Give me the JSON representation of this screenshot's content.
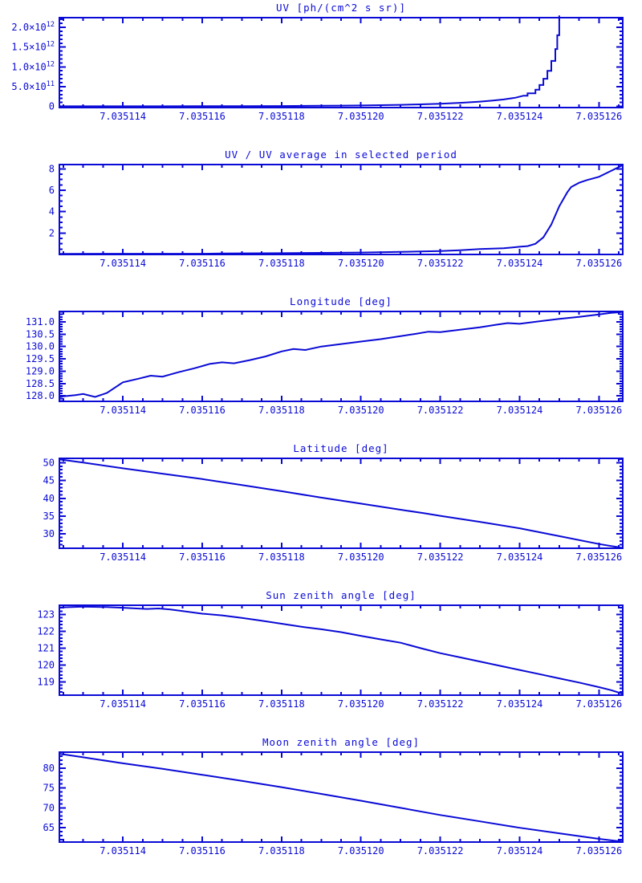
{
  "page": {
    "background": "#ffffff",
    "accent": "#0a0ad6"
  },
  "chart_data": {
    "x_axis": {
      "lim": [
        7.0351124,
        7.0351266
      ],
      "tick_values": [
        7.035114,
        7.035116,
        7.035118,
        7.03512,
        7.035122,
        7.035124,
        7.035126
      ],
      "tick_labels": [
        "7.035114",
        "7.035116",
        "7.035118",
        "7.035120",
        "7.035122",
        "7.035124",
        "7.035126"
      ],
      "minor_step": 5e-07
    },
    "plots": [
      {
        "id": "uv",
        "type": "line",
        "title": "UV [ph/(cm^2 s sr)]",
        "ylim": [
          -30000000000.0,
          2245000000000.0
        ],
        "y_major_values": [
          0,
          500000000000.0,
          1000000000000.0,
          1500000000000.0,
          2000000000000.0
        ],
        "ytick_labels": [
          [
            "0",
            ""
          ],
          [
            "5.0×10",
            "11"
          ],
          [
            "1.0×10",
            "12"
          ],
          [
            "1.5×10",
            "12"
          ],
          [
            "2.0×10",
            "12"
          ]
        ],
        "y_minor_step": 100000000000.0,
        "points": [
          [
            7.0351124,
            2000000000.0
          ],
          [
            7.035115,
            3000000000.0
          ],
          [
            7.035116,
            4000000000.0
          ],
          [
            7.0351165,
            6000000000.0
          ],
          [
            7.035117,
            6000000000.0
          ],
          [
            7.035118,
            9000000000.0
          ],
          [
            7.035119,
            14000000000.0
          ],
          [
            7.0351195,
            18000000000.0
          ],
          [
            7.03512,
            23000000000.0
          ],
          [
            7.0351205,
            30000000000.0
          ],
          [
            7.035121,
            40000000000.0
          ],
          [
            7.0351215,
            52000000000.0
          ],
          [
            7.035122,
            68000000000.0
          ],
          [
            7.0351225,
            90000000000.0
          ],
          [
            7.035123,
            120000000000.0
          ],
          [
            7.0351233,
            145000000000.0
          ],
          [
            7.0351236,
            175000000000.0
          ],
          [
            7.0351239,
            220000000000.0
          ],
          [
            7.0351241,
            270000000000.0
          ],
          [
            7.0351242,
            270000000000.0
          ],
          [
            7.0351242,
            330000000000.0
          ],
          [
            7.0351244,
            330000000000.0
          ],
          [
            7.0351244,
            420000000000.0
          ],
          [
            7.0351245,
            420000000000.0
          ],
          [
            7.0351245,
            540000000000.0
          ],
          [
            7.0351246,
            540000000000.0
          ],
          [
            7.0351246,
            700000000000.0
          ],
          [
            7.0351247,
            700000000000.0
          ],
          [
            7.0351247,
            900000000000.0
          ],
          [
            7.0351248,
            900000000000.0
          ],
          [
            7.0351248,
            1150000000000.0
          ],
          [
            7.0351249,
            1150000000000.0
          ],
          [
            7.0351249,
            1450000000000.0
          ],
          [
            7.03512495,
            1450000000000.0
          ],
          [
            7.03512495,
            1800000000000.0
          ],
          [
            7.035125,
            1800000000000.0
          ],
          [
            7.035125,
            2300000000000.0
          ]
        ]
      },
      {
        "id": "uv-ratio",
        "type": "line",
        "title": "UV / UV average in selected period",
        "ylim": [
          0,
          8.4
        ],
        "y_major_values": [
          2,
          4,
          6,
          8
        ],
        "ytick_labels": [
          [
            "2",
            ""
          ],
          [
            "4",
            ""
          ],
          [
            "6",
            ""
          ],
          [
            "8",
            ""
          ]
        ],
        "y_minor_step": 0.5,
        "points": [
          [
            7.0351124,
            0.06
          ],
          [
            7.035116,
            0.07
          ],
          [
            7.0351165,
            0.1
          ],
          [
            7.035118,
            0.12
          ],
          [
            7.035119,
            0.15
          ],
          [
            7.03512,
            0.18
          ],
          [
            7.035121,
            0.24
          ],
          [
            7.0351215,
            0.28
          ],
          [
            7.035122,
            0.32
          ],
          [
            7.0351225,
            0.4
          ],
          [
            7.035123,
            0.5
          ],
          [
            7.0351233,
            0.55
          ],
          [
            7.0351236,
            0.58
          ],
          [
            7.035124,
            0.72
          ],
          [
            7.0351242,
            0.78
          ],
          [
            7.0351244,
            1.0
          ],
          [
            7.0351246,
            1.6
          ],
          [
            7.0351248,
            2.8
          ],
          [
            7.035125,
            4.5
          ],
          [
            7.0351252,
            5.8
          ],
          [
            7.0351253,
            6.3
          ],
          [
            7.0351255,
            6.7
          ],
          [
            7.0351257,
            6.95
          ],
          [
            7.035126,
            7.25
          ],
          [
            7.0351263,
            7.8
          ],
          [
            7.0351266,
            8.35
          ]
        ]
      },
      {
        "id": "longitude",
        "type": "line",
        "title": "Longitude [deg]",
        "ylim": [
          127.78,
          131.42
        ],
        "y_major_values": [
          128.0,
          128.5,
          129.0,
          129.5,
          130.0,
          130.5,
          131.0
        ],
        "ytick_labels": [
          [
            "128.0",
            ""
          ],
          [
            "128.5",
            ""
          ],
          [
            "129.0",
            ""
          ],
          [
            "129.5",
            ""
          ],
          [
            "130.0",
            ""
          ],
          [
            "130.5",
            ""
          ],
          [
            "131.0",
            ""
          ]
        ],
        "y_minor_step": 0.1,
        "points": [
          [
            7.0351124,
            127.97
          ],
          [
            7.0351128,
            128.03
          ],
          [
            7.035113,
            128.08
          ],
          [
            7.0351133,
            127.96
          ],
          [
            7.0351136,
            128.12
          ],
          [
            7.035114,
            128.55
          ],
          [
            7.0351144,
            128.7
          ],
          [
            7.0351147,
            128.82
          ],
          [
            7.035115,
            128.78
          ],
          [
            7.0351154,
            128.96
          ],
          [
            7.0351158,
            129.12
          ],
          [
            7.0351162,
            129.3
          ],
          [
            7.0351165,
            129.36
          ],
          [
            7.0351168,
            129.32
          ],
          [
            7.0351172,
            129.45
          ],
          [
            7.0351176,
            129.6
          ],
          [
            7.035118,
            129.8
          ],
          [
            7.0351183,
            129.9
          ],
          [
            7.0351186,
            129.86
          ],
          [
            7.035119,
            130.0
          ],
          [
            7.0351195,
            130.1
          ],
          [
            7.03512,
            130.2
          ],
          [
            7.0351205,
            130.3
          ],
          [
            7.035121,
            130.42
          ],
          [
            7.0351214,
            130.52
          ],
          [
            7.0351217,
            130.6
          ],
          [
            7.035122,
            130.58
          ],
          [
            7.0351225,
            130.68
          ],
          [
            7.035123,
            130.78
          ],
          [
            7.0351234,
            130.88
          ],
          [
            7.0351237,
            130.95
          ],
          [
            7.035124,
            130.92
          ],
          [
            7.0351245,
            131.02
          ],
          [
            7.035125,
            131.12
          ],
          [
            7.0351255,
            131.2
          ],
          [
            7.035126,
            131.3
          ],
          [
            7.0351263,
            131.36
          ],
          [
            7.0351266,
            131.4
          ]
        ]
      },
      {
        "id": "latitude",
        "type": "line",
        "title": "Latitude [deg]",
        "ylim": [
          26.0,
          51.2
        ],
        "y_major_values": [
          30,
          35,
          40,
          45,
          50
        ],
        "ytick_labels": [
          [
            "30",
            ""
          ],
          [
            "35",
            ""
          ],
          [
            "40",
            ""
          ],
          [
            "45",
            ""
          ],
          [
            "50",
            ""
          ]
        ],
        "y_minor_step": 1,
        "points": [
          [
            7.0351124,
            50.9
          ],
          [
            7.035113,
            50.0
          ],
          [
            7.035114,
            48.4
          ],
          [
            7.035115,
            46.9
          ],
          [
            7.035116,
            45.4
          ],
          [
            7.035117,
            43.7
          ],
          [
            7.035118,
            42.0
          ],
          [
            7.035119,
            40.2
          ],
          [
            7.03512,
            38.5
          ],
          [
            7.035121,
            36.8
          ],
          [
            7.0351216,
            35.8
          ],
          [
            7.035122,
            35.1
          ],
          [
            7.035123,
            33.4
          ],
          [
            7.035124,
            31.6
          ],
          [
            7.035125,
            29.4
          ],
          [
            7.035126,
            27.2
          ],
          [
            7.0351266,
            26.1
          ]
        ]
      },
      {
        "id": "sun-zenith",
        "type": "line",
        "title": "Sun zenith angle [deg]",
        "ylim": [
          118.2,
          123.55
        ],
        "y_major_values": [
          119,
          120,
          121,
          122,
          123
        ],
        "ytick_labels": [
          [
            "119",
            ""
          ],
          [
            "120",
            ""
          ],
          [
            "121",
            ""
          ],
          [
            "122",
            ""
          ],
          [
            "123",
            ""
          ]
        ],
        "y_minor_step": 0.2,
        "points": [
          [
            7.0351124,
            123.42
          ],
          [
            7.035113,
            123.47
          ],
          [
            7.0351136,
            123.44
          ],
          [
            7.035114,
            123.4
          ],
          [
            7.0351146,
            123.33
          ],
          [
            7.0351149,
            123.36
          ],
          [
            7.0351152,
            123.3
          ],
          [
            7.035116,
            123.05
          ],
          [
            7.0351165,
            122.95
          ],
          [
            7.035117,
            122.8
          ],
          [
            7.0351175,
            122.63
          ],
          [
            7.035118,
            122.45
          ],
          [
            7.0351185,
            122.27
          ],
          [
            7.035119,
            122.12
          ],
          [
            7.0351195,
            121.95
          ],
          [
            7.03512,
            121.73
          ],
          [
            7.0351205,
            121.52
          ],
          [
            7.035121,
            121.32
          ],
          [
            7.0351215,
            121.0
          ],
          [
            7.035122,
            120.7
          ],
          [
            7.0351225,
            120.45
          ],
          [
            7.035123,
            120.2
          ],
          [
            7.0351235,
            119.95
          ],
          [
            7.035124,
            119.7
          ],
          [
            7.0351245,
            119.45
          ],
          [
            7.035125,
            119.2
          ],
          [
            7.0351255,
            118.95
          ],
          [
            7.035126,
            118.68
          ],
          [
            7.0351263,
            118.5
          ],
          [
            7.0351266,
            118.28
          ]
        ]
      },
      {
        "id": "moon-zenith",
        "type": "line",
        "title": "Moon zenith angle [deg]",
        "ylim": [
          61.4,
          84.0
        ],
        "y_major_values": [
          65,
          70,
          75,
          80
        ],
        "ytick_labels": [
          [
            "65",
            ""
          ],
          [
            "70",
            ""
          ],
          [
            "75",
            ""
          ],
          [
            "80",
            ""
          ]
        ],
        "y_minor_step": 1,
        "points": [
          [
            7.0351124,
            83.6
          ],
          [
            7.035113,
            82.7
          ],
          [
            7.035114,
            81.2
          ],
          [
            7.035115,
            79.8
          ],
          [
            7.035116,
            78.3
          ],
          [
            7.035117,
            76.8
          ],
          [
            7.035118,
            75.2
          ],
          [
            7.035119,
            73.5
          ],
          [
            7.03512,
            71.8
          ],
          [
            7.035121,
            70.0
          ],
          [
            7.035122,
            68.2
          ],
          [
            7.035123,
            66.6
          ],
          [
            7.035124,
            65.0
          ],
          [
            7.035125,
            63.6
          ],
          [
            7.035126,
            62.2
          ],
          [
            7.0351266,
            61.5
          ]
        ]
      }
    ]
  }
}
